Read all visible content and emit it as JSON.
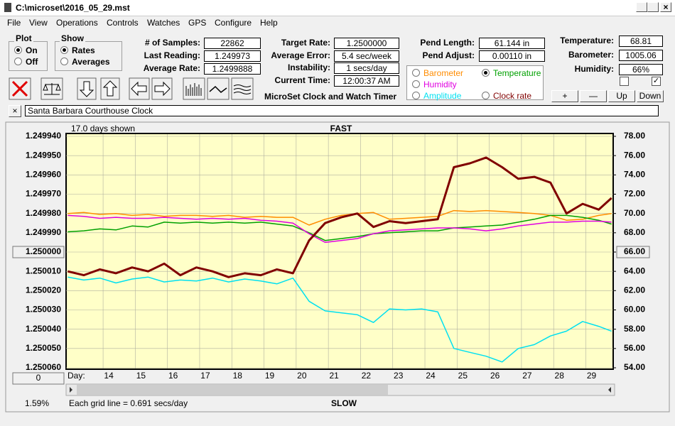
{
  "window": {
    "title": "C:\\microset\\2016_05_29.mst"
  },
  "menu": [
    "File",
    "View",
    "Operations",
    "Controls",
    "Watches",
    "GPS",
    "Configure",
    "Help"
  ],
  "plot": {
    "title": "Plot",
    "options": [
      "On",
      "Off"
    ]
  },
  "show": {
    "title": "Show",
    "options": [
      "Rates",
      "Averages"
    ]
  },
  "stats": [
    {
      "label": "# of Samples:",
      "value": "22862"
    },
    {
      "label": "Last Reading:",
      "value": "1.249973"
    },
    {
      "label": "Average Rate:",
      "value": "1.2499888"
    }
  ],
  "settings": [
    {
      "label": "Target Rate:",
      "value": "1.2500000"
    },
    {
      "label": "Average Error:",
      "value": "5.4 sec/week"
    },
    {
      "label": "Instability:",
      "value": "1 secs/day"
    },
    {
      "label": "Current Time:",
      "value": "12:00:37 AM"
    }
  ],
  "heading": "MicroSet Clock and Watch Timer",
  "pendulum": [
    {
      "label": "Pend Length:",
      "value": "61.144 in"
    },
    {
      "label": "Pend Adjust:",
      "value": "0.00110 in"
    }
  ],
  "sensors": [
    {
      "label": "Temperature:",
      "value": "68.81"
    },
    {
      "label": "Barometer:",
      "value": "1005.06"
    },
    {
      "label": "Humidity:",
      "value": "66%"
    }
  ],
  "buttons": [
    "+",
    "—",
    "Up",
    "Down"
  ],
  "clock_name": "Santa Barbara Courthouse Clock",
  "chart_data": {
    "type": "line",
    "days_shown": "17.0 days shown",
    "top_label": "FAST",
    "bottom_label": "SLOW",
    "x_label": "Day:",
    "percent": "1.59%",
    "grid_note": "Each grid line = 0.691 secs/day",
    "scroll_button": "0",
    "xlim": [
      12.85,
      29.85
    ],
    "xticks": [
      14,
      15,
      16,
      17,
      18,
      19,
      20,
      21,
      22,
      23,
      24,
      25,
      26,
      27,
      28,
      29
    ],
    "ylim": [
      1.25006,
      1.24994
    ],
    "yticks": [
      {
        "value": 1.24994,
        "label": "1.249940"
      },
      {
        "value": 1.24995,
        "label": "1.249950"
      },
      {
        "value": 1.24996,
        "label": "1.249960"
      },
      {
        "value": 1.24997,
        "label": "1.249970"
      },
      {
        "value": 1.24998,
        "label": "1.249980"
      },
      {
        "value": 1.24999,
        "label": "1.249990"
      },
      {
        "value": 1.25,
        "label": "1.250000"
      },
      {
        "value": 1.25001,
        "label": "1.250010"
      },
      {
        "value": 1.25002,
        "label": "1.250020"
      },
      {
        "value": 1.25003,
        "label": "1.250030"
      },
      {
        "value": 1.25004,
        "label": "1.250040"
      },
      {
        "value": 1.25005,
        "label": "1.250050"
      },
      {
        "value": 1.25006,
        "label": "1.250060"
      }
    ],
    "y2lim": [
      54,
      78
    ],
    "y2ticks": [
      {
        "value": 78,
        "label": "78.00"
      },
      {
        "value": 76,
        "label": "76.00"
      },
      {
        "value": 74,
        "label": "74.00"
      },
      {
        "value": 72,
        "label": "72.00"
      },
      {
        "value": 70,
        "label": "70.00"
      },
      {
        "value": 68,
        "label": "68.00"
      },
      {
        "value": 66,
        "label": "66.00"
      },
      {
        "value": 64,
        "label": "64.00"
      },
      {
        "value": 62,
        "label": "62.00"
      },
      {
        "value": 60,
        "label": "60.00"
      },
      {
        "value": 58,
        "label": "58.00"
      },
      {
        "value": 56,
        "label": "56.00"
      },
      {
        "value": 54,
        "label": "54.00"
      }
    ],
    "grid": true,
    "x": [
      12.9,
      13.4,
      13.9,
      14.4,
      14.9,
      15.4,
      15.9,
      16.4,
      16.9,
      17.4,
      17.9,
      18.4,
      18.9,
      19.4,
      19.9,
      20.4,
      20.9,
      21.4,
      21.9,
      22.4,
      22.9,
      23.4,
      23.9,
      24.4,
      24.9,
      25.4,
      25.9,
      26.4,
      26.9,
      27.4,
      27.9,
      28.4,
      28.9,
      29.4,
      29.8
    ],
    "series": [
      {
        "name": "Barometer",
        "color": "#ff8c00",
        "axis": "y2",
        "values": [
          70.0,
          70.1,
          69.9,
          70.0,
          69.8,
          69.9,
          69.7,
          69.8,
          69.8,
          69.7,
          69.8,
          69.6,
          69.7,
          69.6,
          69.6,
          68.8,
          69.4,
          69.8,
          70.0,
          70.1,
          69.4,
          69.5,
          69.6,
          69.7,
          70.3,
          70.2,
          70.3,
          70.2,
          70.1,
          70.0,
          69.8,
          69.3,
          69.4,
          69.8,
          70.0
        ]
      },
      {
        "name": "Temperature",
        "color": "#00a000",
        "axis": "y2",
        "values": [
          68.1,
          68.2,
          68.4,
          68.3,
          68.7,
          68.6,
          69.1,
          69.0,
          69.1,
          69.0,
          69.1,
          69.0,
          69.1,
          68.9,
          68.7,
          68.0,
          67.2,
          67.4,
          67.6,
          67.9,
          68.0,
          68.1,
          68.2,
          68.2,
          68.5,
          68.6,
          68.7,
          68.8,
          69.1,
          69.4,
          69.8,
          69.8,
          69.6,
          69.3,
          68.9
        ]
      },
      {
        "name": "Humidity",
        "color": "#e000e0",
        "axis": "y2",
        "values": [
          69.8,
          69.7,
          69.5,
          69.6,
          69.5,
          69.5,
          69.6,
          69.5,
          69.4,
          69.5,
          69.4,
          69.5,
          69.3,
          69.2,
          69.0,
          67.9,
          67.0,
          67.2,
          67.4,
          67.9,
          68.2,
          68.3,
          68.4,
          68.5,
          68.5,
          68.4,
          68.2,
          68.4,
          68.7,
          68.9,
          69.1,
          69.1,
          69.2,
          69.2,
          69.1
        ]
      },
      {
        "name": "Amplitude",
        "color": "#00e0f0",
        "axis": "y2",
        "values": [
          63.4,
          63.1,
          63.3,
          62.8,
          63.2,
          63.4,
          62.9,
          63.1,
          63.0,
          63.3,
          62.9,
          63.2,
          63.0,
          62.7,
          63.3,
          60.9,
          59.9,
          59.7,
          59.5,
          58.7,
          60.1,
          60.0,
          60.1,
          59.8,
          56.0,
          55.6,
          55.2,
          54.6,
          56.0,
          56.4,
          57.3,
          57.8,
          58.8,
          58.3,
          57.8
        ]
      },
      {
        "name": "Clock rate",
        "color": "#800000",
        "axis": "y",
        "values": [
          1.25001,
          1.250012,
          1.250009,
          1.250011,
          1.250008,
          1.25001,
          1.250006,
          1.250012,
          1.250008,
          1.25001,
          1.250013,
          1.250011,
          1.250012,
          1.250009,
          1.250011,
          1.249994,
          1.249985,
          1.249982,
          1.24998,
          1.249987,
          1.249984,
          1.249985,
          1.249984,
          1.249983,
          1.249956,
          1.249954,
          1.249951,
          1.249956,
          1.249962,
          1.249961,
          1.249964,
          1.24998,
          1.249975,
          1.249978,
          1.249972
        ]
      }
    ]
  }
}
